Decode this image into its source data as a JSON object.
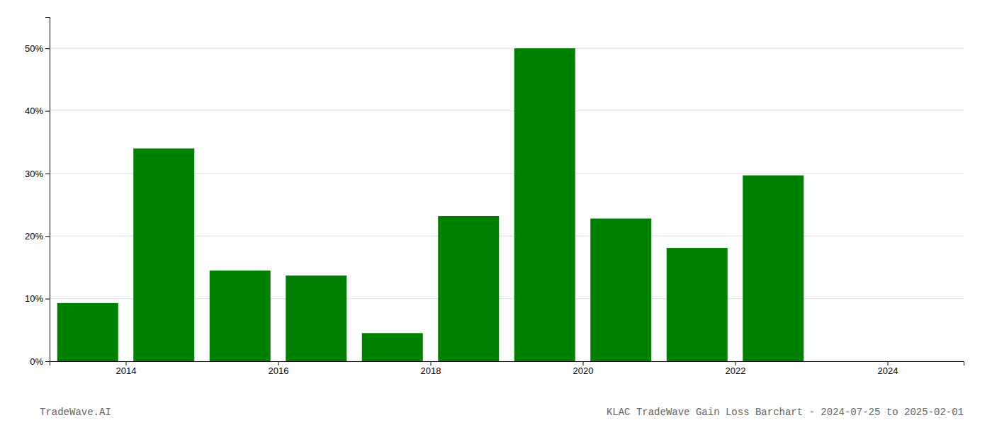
{
  "chart_data": {
    "type": "bar",
    "title": "KLAC TradeWave Gain Loss Barchart - 2024-07-25 to 2025-02-01",
    "annotations": [
      "TradeWave.AI"
    ],
    "x": [
      2013.5,
      2014.5,
      2015.5,
      2016.5,
      2017.5,
      2018.5,
      2019.5,
      2020.5,
      2021.5,
      2022.5,
      2023.5
    ],
    "values": [
      9.3,
      34.0,
      14.5,
      13.7,
      4.5,
      23.2,
      50.0,
      22.8,
      18.1,
      29.7,
      0.0
    ],
    "color": "#008000",
    "xlim": [
      2013.0,
      2025.0
    ],
    "xticks": [
      2014,
      2016,
      2018,
      2020,
      2022,
      2024
    ],
    "ylim": [
      0,
      55
    ],
    "yticks": [
      {
        "value": 0,
        "label": "0%"
      },
      {
        "value": 10,
        "label": "10%"
      },
      {
        "value": 20,
        "label": "20%"
      },
      {
        "value": 30,
        "label": "30%"
      },
      {
        "value": 40,
        "label": "40%"
      },
      {
        "value": 50,
        "label": "50%"
      }
    ],
    "grid": true
  }
}
